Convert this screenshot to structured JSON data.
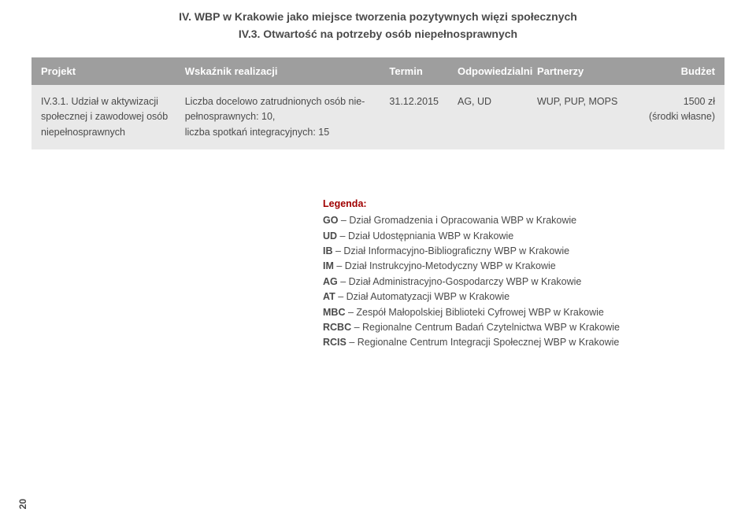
{
  "header": {
    "line1": "IV. WBP w Krakowie jako miejsce tworzenia pozytywnych więzi społecznych",
    "line2": "IV.3. Otwartość na potrzeby osób niepełnosprawnych"
  },
  "tableHead": {
    "project": "Projekt",
    "indicator": "Wskaźnik realizacji",
    "termin": "Termin",
    "responsible": "Odpowiedzialni",
    "partners": "Partnerzy",
    "budget": "Budżet"
  },
  "row": {
    "project_l1": "IV.3.1. Udział w aktywizacji",
    "project_l2": "społecznej i zawodowej osób",
    "project_l3": "niepełnosprawnych",
    "indicator_l1": "Liczba docelowo zatrudnionych osób nie-",
    "indicator_l2": "pełnosprawnych: 10,",
    "indicator_l3": "liczba spotkań integracyjnych: 15",
    "termin": "31.12.2015",
    "responsible": "AG, UD",
    "partners": "WUP, PUP, MOPS",
    "budget_l1": "1500 zł",
    "budget_l2": "(środki własne)"
  },
  "legend": {
    "title": "Legenda:",
    "items": [
      {
        "code": "GO",
        "desc": " – Dział Gromadzenia i Opracowania WBP w Krakowie"
      },
      {
        "code": "UD",
        "desc": " – Dział Udostępniania WBP w Krakowie"
      },
      {
        "code": "IB",
        "desc": " – Dział Informacyjno-Bibliograficzny WBP w Krakowie"
      },
      {
        "code": "IM",
        "desc": " – Dział Instrukcyjno-Metodyczny WBP w Krakowie"
      },
      {
        "code": "AG",
        "desc": " – Dział Administracyjno-Gospodarczy WBP w Krakowie"
      },
      {
        "code": "AT",
        "desc": " – Dział Automatyzacji WBP w Krakowie"
      },
      {
        "code": "MBC",
        "desc": " – Zespół Małopolskiej Biblioteki Cyfrowej WBP w Krakowie"
      },
      {
        "code": "RCBC",
        "desc": " – Regionalne Centrum Badań Czytelnictwa WBP w Krakowie"
      },
      {
        "code": "RCIS",
        "desc": " – Regionalne Centrum Integracji Społecznej WBP w Krakowie"
      }
    ]
  },
  "pageNumber": "20"
}
